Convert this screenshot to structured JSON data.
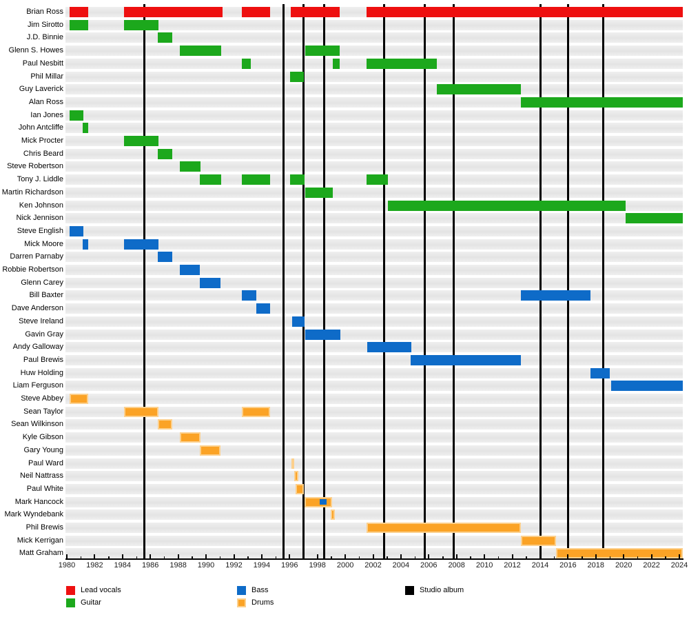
{
  "colors": {
    "lead_vocals": "#ee1010",
    "guitar": "#1ca81c",
    "bass": "#0e6bc8",
    "drums": "#fba326",
    "drums_edge": "#fcd08d",
    "studio_album": "#000000",
    "stripe_dark": "#e4e4e4",
    "stripe_light": "#efefef",
    "background": "#ffffff"
  },
  "chart_data": {
    "type": "timeline",
    "title": "",
    "x_axis": {
      "min": 1980,
      "max": 2024.25,
      "tick_step_labeled": 2,
      "tick_labels": [
        "1980",
        "1982",
        "1984",
        "1986",
        "1988",
        "1990",
        "1992",
        "1994",
        "1996",
        "1998",
        "2000",
        "2002",
        "2004",
        "2006",
        "2008",
        "2010",
        "2012",
        "2014",
        "2016",
        "2018",
        "2020",
        "2022",
        "2024"
      ]
    },
    "album_lines": [
      1985.55,
      1995.55,
      1997.0,
      1998.5,
      2002.8,
      2005.7,
      2007.8,
      2014.0,
      2016.0,
      2018.55
    ],
    "legend": [
      {
        "label": "Lead vocals",
        "color_key": "lead_vocals"
      },
      {
        "label": "Guitar",
        "color_key": "guitar"
      },
      {
        "label": "Bass",
        "color_key": "bass"
      },
      {
        "label": "Drums",
        "color_key": "drums"
      },
      {
        "label": "Studio album",
        "color_key": "studio_album"
      }
    ],
    "members": [
      {
        "name": "Brian Ross",
        "role": "lead_vocals",
        "periods": [
          [
            1980.2,
            1981.55
          ],
          [
            1984.1,
            1991.2
          ],
          [
            1992.55,
            1994.6
          ],
          [
            1996.1,
            1999.6
          ],
          [
            2001.55,
            2024.25
          ]
        ]
      },
      {
        "name": "Jim Sirotto",
        "role": "guitar",
        "periods": [
          [
            1980.2,
            1981.55
          ],
          [
            1984.1,
            1986.6
          ]
        ]
      },
      {
        "name": "J.D. Binnie",
        "role": "guitar",
        "periods": [
          [
            1986.55,
            1987.6
          ]
        ]
      },
      {
        "name": "Glenn S. Howes",
        "role": "guitar",
        "periods": [
          [
            1988.1,
            1991.1
          ],
          [
            1997.1,
            1999.6
          ]
        ]
      },
      {
        "name": "Paul Nesbitt",
        "role": "guitar",
        "periods": [
          [
            1992.55,
            1993.2
          ],
          [
            1999.1,
            1999.6
          ],
          [
            2001.55,
            2006.6
          ]
        ]
      },
      {
        "name": "Phil Millar",
        "role": "guitar",
        "periods": [
          [
            1996.05,
            1997.05
          ]
        ]
      },
      {
        "name": "Guy Laverick",
        "role": "guitar",
        "periods": [
          [
            2006.6,
            2012.6
          ]
        ]
      },
      {
        "name": "Alan Ross",
        "role": "guitar",
        "periods": [
          [
            2012.6,
            2024.25
          ]
        ]
      },
      {
        "name": "Ian Jones",
        "role": "guitar",
        "periods": [
          [
            1980.2,
            1981.2
          ]
        ]
      },
      {
        "name": "John Antcliffe",
        "role": "guitar",
        "periods": [
          [
            1981.15,
            1981.55
          ]
        ]
      },
      {
        "name": "Mick Procter",
        "role": "guitar",
        "periods": [
          [
            1984.1,
            1986.6
          ]
        ]
      },
      {
        "name": "Chris Beard",
        "role": "guitar",
        "periods": [
          [
            1986.55,
            1987.6
          ]
        ]
      },
      {
        "name": "Steve Robertson",
        "role": "guitar",
        "periods": [
          [
            1988.1,
            1989.6
          ]
        ]
      },
      {
        "name": "Tony J. Liddle",
        "role": "guitar",
        "periods": [
          [
            1989.55,
            1991.1
          ],
          [
            1992.55,
            1994.6
          ],
          [
            1996.05,
            1997.1
          ],
          [
            2001.55,
            2003.05
          ]
        ]
      },
      {
        "name": "Martin Richardson",
        "role": "guitar",
        "periods": [
          [
            1997.1,
            1999.1
          ]
        ]
      },
      {
        "name": "Ken Johnson",
        "role": "guitar",
        "periods": [
          [
            2003.05,
            2020.15
          ]
        ]
      },
      {
        "name": "Nick Jennison",
        "role": "guitar",
        "periods": [
          [
            2020.15,
            2024.25
          ]
        ]
      },
      {
        "name": "Steve English",
        "role": "bass",
        "periods": [
          [
            1980.2,
            1981.2
          ]
        ]
      },
      {
        "name": "Mick Moore",
        "role": "bass",
        "periods": [
          [
            1981.15,
            1981.55
          ],
          [
            1984.1,
            1986.6
          ]
        ]
      },
      {
        "name": "Darren Parnaby",
        "role": "bass",
        "periods": [
          [
            1986.55,
            1987.6
          ]
        ]
      },
      {
        "name": "Robbie Robertson",
        "role": "bass",
        "periods": [
          [
            1988.1,
            1989.55
          ]
        ]
      },
      {
        "name": "Glenn Carey",
        "role": "bass",
        "periods": [
          [
            1989.55,
            1991.05
          ]
        ]
      },
      {
        "name": "Bill Baxter",
        "role": "bass",
        "periods": [
          [
            1992.55,
            1993.6
          ],
          [
            2012.6,
            2017.6
          ]
        ]
      },
      {
        "name": "Dave Anderson",
        "role": "bass",
        "periods": [
          [
            1993.6,
            1994.6
          ]
        ]
      },
      {
        "name": "Steve Ireland",
        "role": "bass",
        "periods": [
          [
            1996.2,
            1997.1
          ]
        ]
      },
      {
        "name": "Gavin Gray",
        "role": "bass",
        "periods": [
          [
            1997.1,
            1999.65
          ]
        ]
      },
      {
        "name": "Andy Galloway",
        "role": "bass",
        "periods": [
          [
            2001.6,
            2004.75
          ]
        ]
      },
      {
        "name": "Paul Brewis",
        "role": "bass",
        "periods": [
          [
            2004.7,
            2012.6
          ]
        ]
      },
      {
        "name": "Huw Holding",
        "role": "bass",
        "periods": [
          [
            2017.6,
            2019.0
          ]
        ]
      },
      {
        "name": "Liam Ferguson",
        "role": "bass",
        "periods": [
          [
            2019.1,
            2024.25
          ]
        ]
      },
      {
        "name": "Steve Abbey",
        "role": "drums",
        "periods": [
          [
            1980.2,
            1981.55
          ]
        ]
      },
      {
        "name": "Sean Taylor",
        "role": "drums",
        "periods": [
          [
            1984.1,
            1986.6
          ],
          [
            1992.55,
            1994.6
          ]
        ]
      },
      {
        "name": "Sean Wilkinson",
        "role": "drums",
        "periods": [
          [
            1986.55,
            1987.6
          ]
        ]
      },
      {
        "name": "Kyle Gibson",
        "role": "drums",
        "periods": [
          [
            1988.1,
            1989.6
          ]
        ]
      },
      {
        "name": "Gary Young",
        "role": "drums",
        "periods": [
          [
            1989.55,
            1991.05
          ]
        ]
      },
      {
        "name": "Paul Ward",
        "role": "drums",
        "periods": [
          [
            1996.15,
            1996.35
          ]
        ]
      },
      {
        "name": "Neil Nattrass",
        "role": "drums",
        "periods": [
          [
            1996.35,
            1996.65
          ]
        ]
      },
      {
        "name": "Paul White",
        "role": "drums",
        "periods": [
          [
            1996.45,
            1997.05
          ]
        ]
      },
      {
        "name": "Mark Hancock",
        "role": "drums",
        "periods": [
          [
            1997.05,
            1999.05
          ]
        ],
        "overlay_bars": [
          {
            "role": "bass",
            "period": [
              1998.15,
              1998.65
            ]
          }
        ]
      },
      {
        "name": "Mark Wyndebank",
        "role": "drums",
        "periods": [
          [
            1998.95,
            1999.25
          ]
        ]
      },
      {
        "name": "Phil Brewis",
        "role": "drums",
        "periods": [
          [
            2001.55,
            2012.6
          ]
        ]
      },
      {
        "name": "Mick Kerrigan",
        "role": "drums",
        "periods": [
          [
            2012.6,
            2015.15
          ]
        ]
      },
      {
        "name": "Matt Graham",
        "role": "drums",
        "periods": [
          [
            2015.15,
            2024.25
          ]
        ]
      }
    ]
  }
}
